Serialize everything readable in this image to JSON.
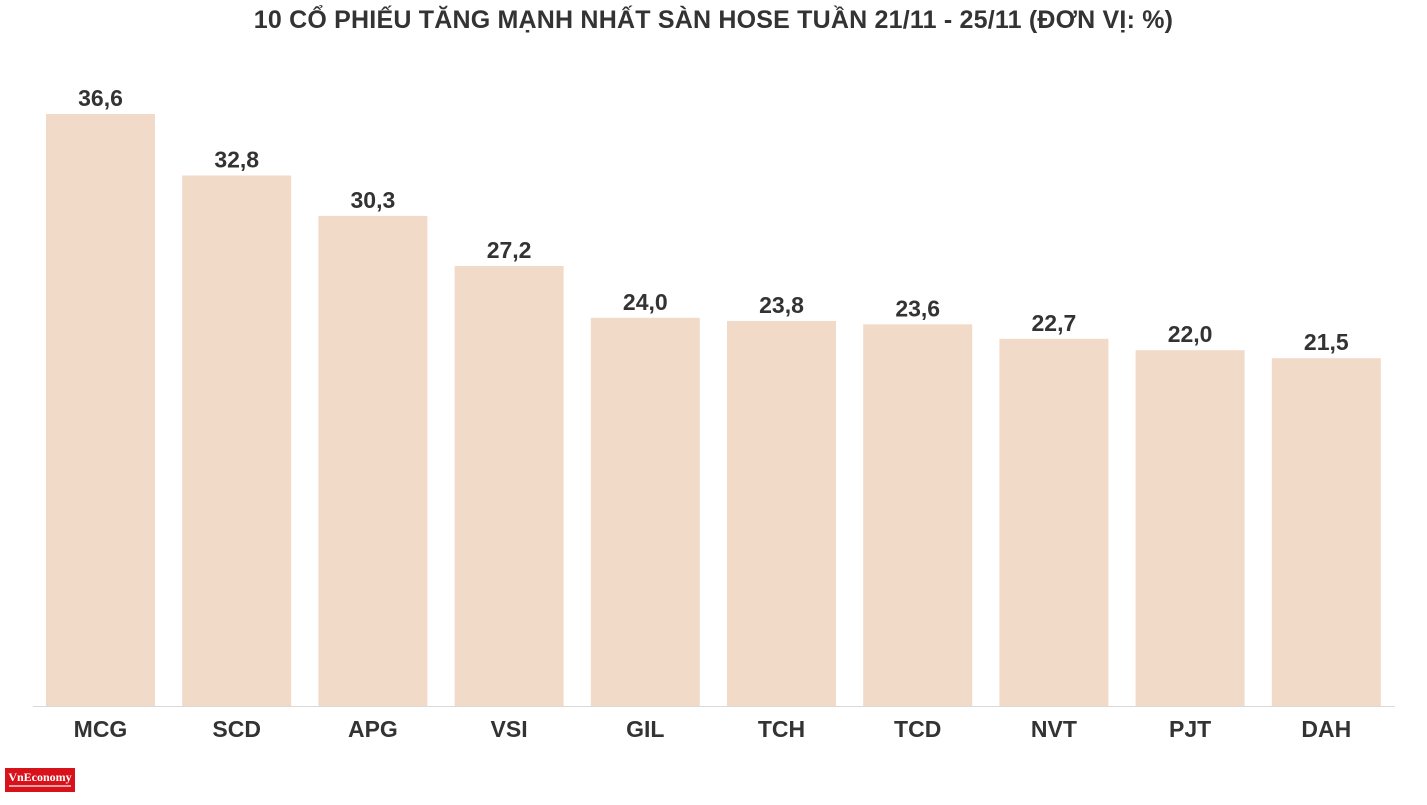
{
  "chart_data": {
    "type": "bar",
    "title": "10 CỔ PHIẾU TĂNG MẠNH NHẤT SÀN HOSE TUẦN 21/11 - 25/11 (ĐƠN VỊ: %)",
    "xlabel": "",
    "ylabel": "",
    "categories": [
      "MCG",
      "SCD",
      "APG",
      "VSI",
      "GIL",
      "TCH",
      "TCD",
      "NVT",
      "PJT",
      "DAH"
    ],
    "values": [
      36.6,
      32.8,
      30.3,
      27.2,
      24.0,
      23.8,
      23.6,
      22.7,
      22.0,
      21.5
    ],
    "value_labels": [
      "36,6",
      "32,8",
      "30,3",
      "27,2",
      "24,0",
      "23,8",
      "23,6",
      "22,7",
      "22,0",
      "21,5"
    ],
    "ylim": [
      0,
      36.6
    ],
    "grid": false,
    "legend": "none"
  },
  "colors": {
    "bar": "#f2dac8",
    "text": "#333333",
    "axis": "#d9d9d9",
    "logo_bg": "#d7121a"
  },
  "branding": {
    "logo_text": "VnEconomy"
  }
}
